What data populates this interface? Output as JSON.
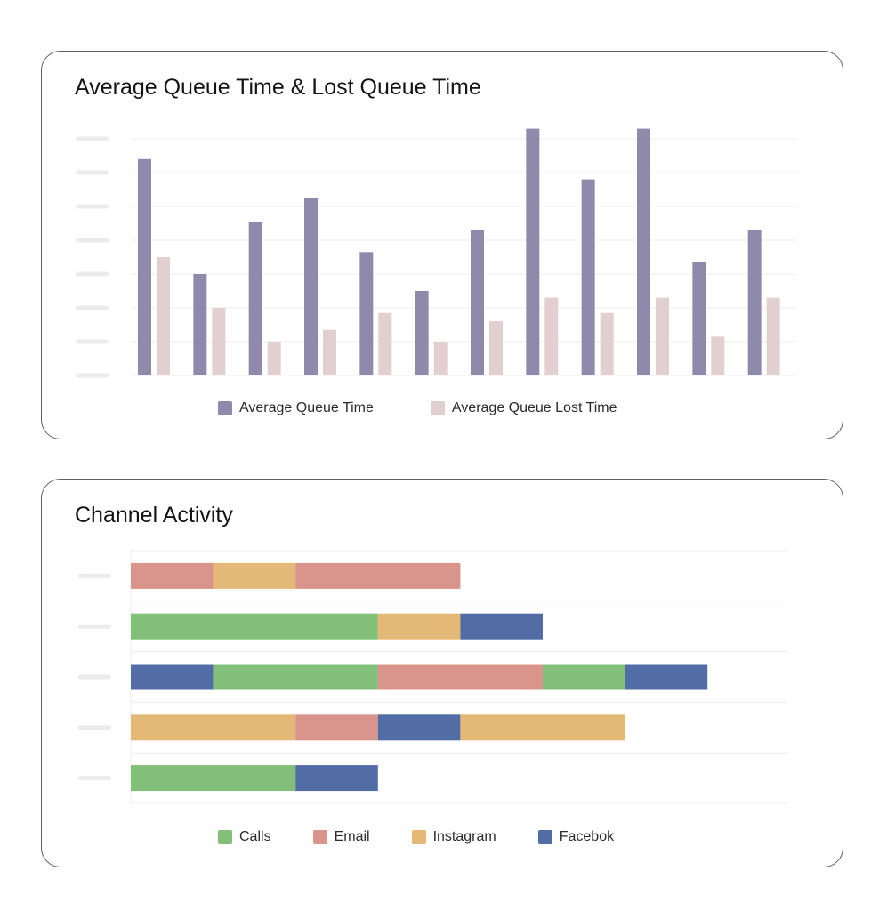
{
  "queue_card": {
    "title": "Average Queue Time & Lost Queue Time"
  },
  "channel_card": {
    "title": "Channel Activity"
  },
  "chart_data": [
    {
      "type": "bar",
      "title": "Average Queue Time & Lost Queue Time",
      "orientation": "vertical",
      "categories": [
        "",
        "",
        "",
        "",
        "",
        "",
        "",
        "",
        "",
        "",
        "",
        ""
      ],
      "ylim": [
        0,
        7
      ],
      "grid": true,
      "legend_position": "bottom-center",
      "tick_labels_placeholder": true,
      "series": [
        {
          "name": "Average Queue Time",
          "color": "#8f8aac",
          "values": [
            6.4,
            3.0,
            4.55,
            5.25,
            3.65,
            2.5,
            4.3,
            7.3,
            5.8,
            7.3,
            3.35,
            4.3
          ]
        },
        {
          "name": "Average Queue Lost Time",
          "color": "#e1d0cf",
          "values": [
            3.5,
            2.0,
            1.0,
            1.35,
            1.85,
            1.0,
            1.6,
            2.3,
            1.85,
            2.3,
            1.15,
            2.3
          ]
        }
      ]
    },
    {
      "type": "bar",
      "title": "Channel Activity",
      "orientation": "horizontal",
      "stacked": true,
      "categories": [
        "",
        "",
        "",
        "",
        ""
      ],
      "xlim": [
        0,
        8
      ],
      "grid": true,
      "legend_position": "bottom-center",
      "tick_labels_placeholder": true,
      "legend": [
        {
          "name": "Calls",
          "color": "#82bf78"
        },
        {
          "name": "Email",
          "color": "#d9948c"
        },
        {
          "name": "Instagram",
          "color": "#e4b876"
        },
        {
          "name": "Facebok",
          "color": "#526da6"
        }
      ],
      "rows": [
        [
          {
            "series": "Email",
            "value": 1
          },
          {
            "series": "Instagram",
            "value": 1
          },
          {
            "series": "Email",
            "value": 2
          }
        ],
        [
          {
            "series": "Calls",
            "value": 3
          },
          {
            "series": "Instagram",
            "value": 1
          },
          {
            "series": "Facebok",
            "value": 1
          }
        ],
        [
          {
            "series": "Facebok",
            "value": 1
          },
          {
            "series": "Calls",
            "value": 2
          },
          {
            "series": "Email",
            "value": 2
          },
          {
            "series": "Calls",
            "value": 1
          },
          {
            "series": "Facebok",
            "value": 1
          }
        ],
        [
          {
            "series": "Instagram",
            "value": 2
          },
          {
            "series": "Email",
            "value": 1
          },
          {
            "series": "Facebok",
            "value": 1
          },
          {
            "series": "Instagram",
            "value": 2
          }
        ],
        [
          {
            "series": "Calls",
            "value": 2
          },
          {
            "series": "Facebok",
            "value": 1
          }
        ]
      ]
    }
  ]
}
